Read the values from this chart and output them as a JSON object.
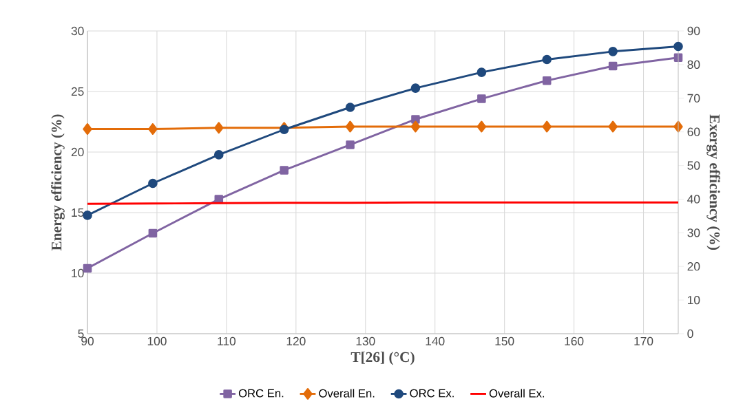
{
  "chart_data": {
    "type": "line",
    "xlabel": "T[26] (°C)",
    "ylabel": "Energy efficiency (%)",
    "y2label": "Exergy efficiency  (%)",
    "x": [
      90,
      99.4,
      108.9,
      118.3,
      127.8,
      137.2,
      146.7,
      156.1,
      165.6,
      175
    ],
    "xlim": [
      90,
      175
    ],
    "xticks": [
      90,
      100,
      110,
      120,
      130,
      140,
      150,
      160,
      170
    ],
    "ylim": [
      5,
      30
    ],
    "yticks": [
      5,
      10,
      15,
      20,
      25,
      30
    ],
    "y2lim": [
      0,
      90
    ],
    "y2ticks": [
      0,
      10,
      20,
      30,
      40,
      50,
      60,
      70,
      80,
      90
    ],
    "grid": true,
    "legend": "bottom",
    "series": [
      {
        "name": "ORC En.",
        "color": "#8064a2",
        "marker": "square",
        "values": [
          10.4,
          13.3,
          16.1,
          18.5,
          20.6,
          22.7,
          24.4,
          25.9,
          27.1,
          27.8
        ]
      },
      {
        "name": "Overall En.",
        "color": "#e36c09",
        "marker": "diamond",
        "values": [
          21.9,
          21.9,
          22.0,
          22.0,
          22.1,
          22.1,
          22.1,
          22.1,
          22.1,
          22.1
        ]
      },
      {
        "name": "ORC Ex.",
        "color": "#1f497d",
        "marker": "circle",
        "axis": "y2",
        "values": [
          35.2,
          44.7,
          53.2,
          60.7,
          67.3,
          73.0,
          77.7,
          81.5,
          83.9,
          85.4
        ]
      },
      {
        "name": "Overall Ex.",
        "color": "#ff0000",
        "marker": "none",
        "axis": "y2",
        "values": [
          38.6,
          38.7,
          38.8,
          38.9,
          38.9,
          39.0,
          39.0,
          39.0,
          39.0,
          39.0
        ]
      }
    ]
  }
}
